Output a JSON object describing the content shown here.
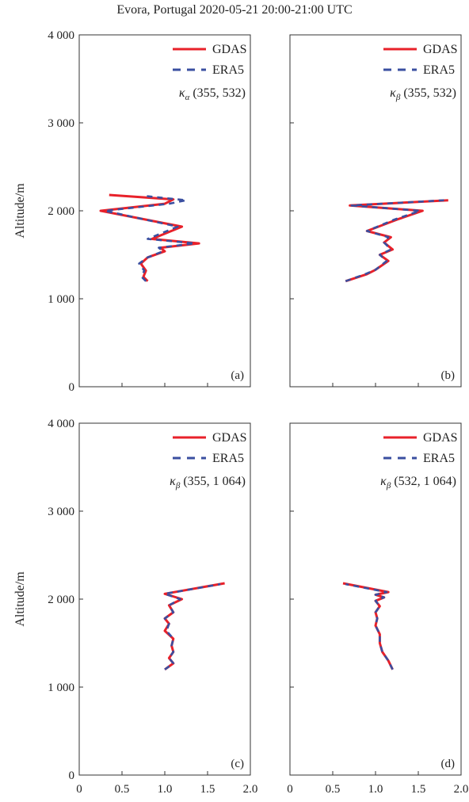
{
  "figure_title": "Evora, Portugal 2020-05-21 20:00-21:00 UTC",
  "colors": {
    "gdas": "#e8212a",
    "era5": "#3a4fa0"
  },
  "chart_data": [
    {
      "type": "line",
      "panel_label": "(a)",
      "annotation_kappa": "κ",
      "annotation_sub": "α",
      "annotation_rest": " (355, 532)",
      "ylabel": "Altitude/m",
      "xlim": [
        0,
        2.0
      ],
      "ylim": [
        0,
        4000
      ],
      "yticks": [
        0,
        1000,
        2000,
        3000,
        4000
      ],
      "ytick_labels": [
        "0",
        "1 000",
        "2 000",
        "3 000",
        "4 000"
      ],
      "xticks": [
        0,
        0.5,
        1.0,
        1.5,
        2.0
      ],
      "xtick_labels": [
        "",
        "",
        "",
        "",
        ""
      ],
      "legend": [
        "GDAS",
        "ERA5"
      ],
      "series": [
        {
          "name": "GDAS",
          "x": [
            0.8,
            0.75,
            0.78,
            0.72,
            0.8,
            1.0,
            0.95,
            1.4,
            0.85,
            1.2,
            0.25,
            1.0,
            1.1,
            0.35
          ],
          "y": [
            1200,
            1250,
            1320,
            1400,
            1470,
            1540,
            1580,
            1630,
            1680,
            1820,
            2000,
            2080,
            2130,
            2180
          ]
        },
        {
          "name": "ERA5",
          "x": [
            0.78,
            0.73,
            0.76,
            0.7,
            0.8,
            0.98,
            0.93,
            1.35,
            0.8,
            1.15,
            0.3,
            1.05,
            1.25,
            0.75
          ],
          "y": [
            1200,
            1250,
            1320,
            1400,
            1470,
            1540,
            1580,
            1630,
            1680,
            1820,
            2000,
            2080,
            2120,
            2170
          ]
        }
      ]
    },
    {
      "type": "line",
      "panel_label": "(b)",
      "annotation_kappa": "κ",
      "annotation_sub": "β",
      "annotation_rest": " (355, 532)",
      "ylabel": "",
      "xlim": [
        0,
        2.0
      ],
      "ylim": [
        0,
        4000
      ],
      "yticks": [
        0,
        1000,
        2000,
        3000,
        4000
      ],
      "ytick_labels": [
        "",
        "",
        "",
        "",
        ""
      ],
      "xticks": [
        0,
        0.5,
        1.0,
        1.5,
        2.0
      ],
      "xtick_labels": [
        "",
        "",
        "",
        "",
        ""
      ],
      "legend": [
        "GDAS",
        "ERA5"
      ],
      "series": [
        {
          "name": "GDAS",
          "x": [
            0.65,
            0.9,
            1.0,
            1.15,
            1.05,
            1.2,
            1.1,
            1.18,
            0.9,
            1.25,
            1.55,
            0.7,
            1.85
          ],
          "y": [
            1200,
            1280,
            1330,
            1430,
            1500,
            1560,
            1640,
            1700,
            1770,
            1900,
            2000,
            2060,
            2120
          ]
        },
        {
          "name": "ERA5",
          "x": [
            0.65,
            0.88,
            1.0,
            1.13,
            1.05,
            1.18,
            1.1,
            1.15,
            0.9,
            1.22,
            1.52,
            0.72,
            1.8
          ],
          "y": [
            1200,
            1280,
            1330,
            1430,
            1500,
            1560,
            1640,
            1700,
            1770,
            1900,
            2000,
            2060,
            2120
          ]
        }
      ]
    },
    {
      "type": "line",
      "panel_label": "(c)",
      "annotation_kappa": "κ",
      "annotation_sub": "β",
      "annotation_rest": " (355, 1 064)",
      "ylabel": "Altitude/m",
      "xlim": [
        0,
        2.0
      ],
      "ylim": [
        0,
        4000
      ],
      "yticks": [
        0,
        1000,
        2000,
        3000,
        4000
      ],
      "ytick_labels": [
        "0",
        "1 000",
        "2 000",
        "3 000",
        "4 000"
      ],
      "xticks": [
        0,
        0.5,
        1.0,
        1.5,
        2.0
      ],
      "xtick_labels": [
        "0",
        "0.5",
        "1.0",
        "1.5",
        "2.0"
      ],
      "legend": [
        "GDAS",
        "ERA5"
      ],
      "series": [
        {
          "name": "GDAS",
          "x": [
            1.0,
            1.1,
            1.05,
            1.1,
            1.08,
            1.1,
            1.0,
            1.05,
            1.0,
            1.1,
            1.05,
            1.2,
            1.0,
            1.7
          ],
          "y": [
            1200,
            1270,
            1330,
            1400,
            1470,
            1550,
            1640,
            1720,
            1780,
            1850,
            1930,
            2000,
            2060,
            2180
          ]
        },
        {
          "name": "ERA5",
          "x": [
            1.0,
            1.1,
            1.05,
            1.1,
            1.08,
            1.1,
            1.02,
            1.05,
            1.0,
            1.1,
            1.05,
            1.18,
            1.0,
            1.65
          ],
          "y": [
            1200,
            1270,
            1330,
            1400,
            1470,
            1550,
            1640,
            1720,
            1780,
            1850,
            1930,
            2000,
            2060,
            2170
          ]
        }
      ]
    },
    {
      "type": "line",
      "panel_label": "(d)",
      "annotation_kappa": "κ",
      "annotation_sub": "β",
      "annotation_rest": " (532, 1 064)",
      "ylabel": "",
      "xlim": [
        0,
        2.0
      ],
      "ylim": [
        0,
        4000
      ],
      "yticks": [
        0,
        1000,
        2000,
        3000,
        4000
      ],
      "ytick_labels": [
        "",
        "",
        "",
        "",
        ""
      ],
      "xticks": [
        0,
        0.5,
        1.0,
        1.5,
        2.0
      ],
      "xtick_labels": [
        "0",
        "0.5",
        "1.0",
        "1.5",
        "2.0"
      ],
      "legend": [
        "GDAS",
        "ERA5"
      ],
      "series": [
        {
          "name": "GDAS",
          "x": [
            1.2,
            1.15,
            1.08,
            1.05,
            1.05,
            1.0,
            1.02,
            1.0,
            1.05,
            1.0,
            1.1,
            1.0,
            1.15,
            0.62
          ],
          "y": [
            1200,
            1300,
            1400,
            1500,
            1600,
            1700,
            1780,
            1850,
            1920,
            1980,
            2020,
            2050,
            2080,
            2180
          ]
        },
        {
          "name": "ERA5",
          "x": [
            1.2,
            1.15,
            1.08,
            1.05,
            1.05,
            1.0,
            1.02,
            1.0,
            1.05,
            1.0,
            1.1,
            1.0,
            1.13,
            0.65
          ],
          "y": [
            1200,
            1300,
            1400,
            1500,
            1600,
            1700,
            1780,
            1850,
            1920,
            1980,
            2020,
            2050,
            2080,
            2170
          ]
        }
      ]
    }
  ]
}
